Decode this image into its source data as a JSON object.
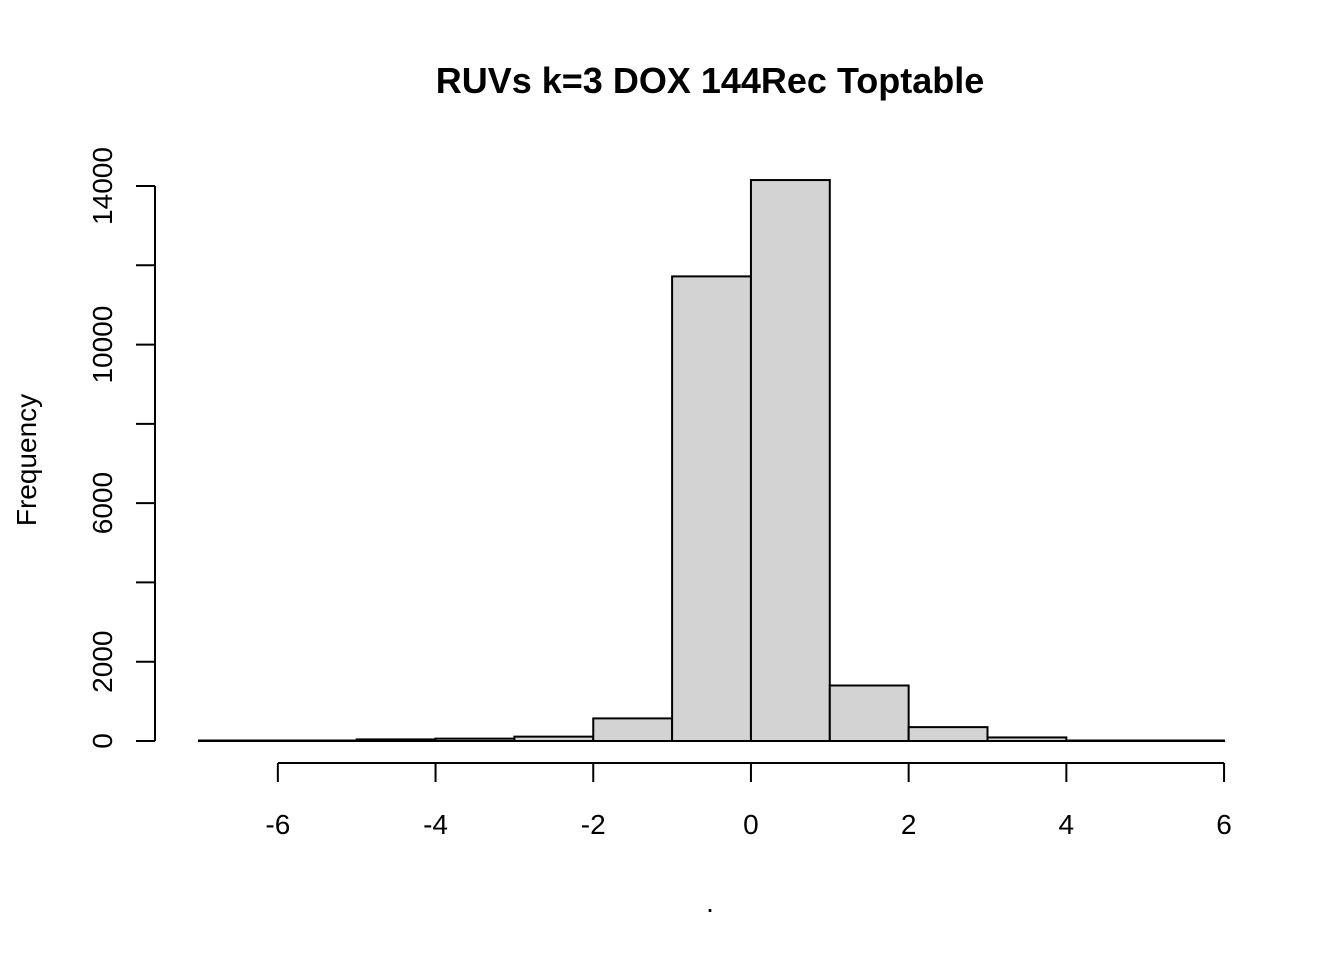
{
  "chart_data": {
    "type": "bar",
    "title": "RUVs k=3 DOX 144Rec Toptable",
    "xlabel": ".",
    "ylabel": "Frequency",
    "bin_edges": [
      -7,
      -6,
      -5,
      -4,
      -3,
      -2,
      -1,
      0,
      1,
      2,
      3,
      4,
      5,
      6
    ],
    "values": [
      3,
      7,
      40,
      60,
      110,
      570,
      11720,
      14150,
      1400,
      350,
      90,
      12,
      4
    ],
    "xlim": [
      -7,
      6
    ],
    "ylim": [
      0,
      14000
    ],
    "x_ticks": [
      -6,
      -4,
      -2,
      0,
      2,
      4,
      6
    ],
    "y_ticks": [
      0,
      2000,
      4000,
      6000,
      8000,
      10000,
      12000,
      14000
    ],
    "y_tick_labels": [
      {
        "value": 0,
        "label": "0"
      },
      {
        "value": 2000,
        "label": "2000"
      },
      {
        "value": 6000,
        "label": "6000"
      },
      {
        "value": 10000,
        "label": "10000"
      },
      {
        "value": 14000,
        "label": "14000"
      }
    ],
    "bar_color": "#d3d3d3",
    "grid": false
  }
}
